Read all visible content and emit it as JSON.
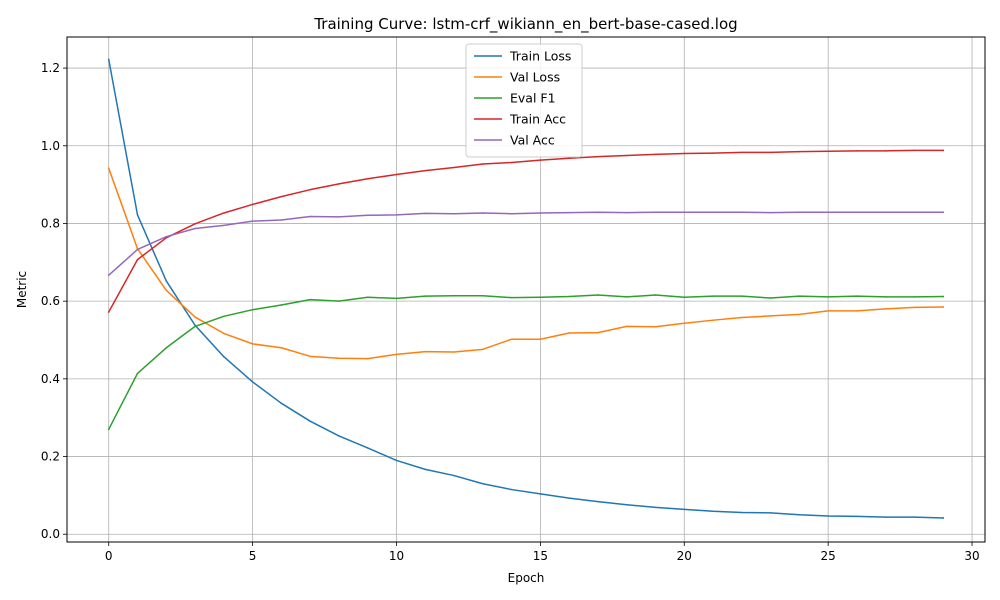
{
  "chart_data": {
    "type": "line",
    "title": "Training Curve: lstm-crf_wikiann_en_bert-base-cased.log",
    "xlabel": "Epoch",
    "ylabel": "Metric",
    "xlim": [
      -1.45,
      30.45
    ],
    "ylim": [
      -0.02,
      1.28
    ],
    "xticks": [
      0,
      5,
      10,
      15,
      20,
      25,
      30
    ],
    "yticks": [
      0.0,
      0.2,
      0.4,
      0.6,
      0.8,
      1.0,
      1.2
    ],
    "xtick_labels": [
      "0",
      "5",
      "10",
      "15",
      "20",
      "25",
      "30"
    ],
    "ytick_labels": [
      "0.0",
      "0.2",
      "0.4",
      "0.6",
      "0.8",
      "1.0",
      "1.2"
    ],
    "grid": true,
    "legend_position": "top-center",
    "x": [
      0,
      1,
      2,
      3,
      4,
      5,
      6,
      7,
      8,
      9,
      10,
      11,
      12,
      13,
      14,
      15,
      16,
      17,
      18,
      19,
      20,
      21,
      22,
      23,
      24,
      25,
      26,
      27,
      28,
      29
    ],
    "series": [
      {
        "name": "Train Loss",
        "color": "#1f77b4",
        "values": [
          1.222,
          0.822,
          0.652,
          0.538,
          0.457,
          0.392,
          0.337,
          0.291,
          0.253,
          0.222,
          0.19,
          0.167,
          0.151,
          0.13,
          0.115,
          0.104,
          0.093,
          0.084,
          0.076,
          0.069,
          0.064,
          0.059,
          0.056,
          0.055,
          0.05,
          0.047,
          0.046,
          0.044,
          0.044,
          0.042
        ]
      },
      {
        "name": "Val Loss",
        "color": "#ff7f0e",
        "values": [
          0.942,
          0.735,
          0.628,
          0.559,
          0.517,
          0.49,
          0.48,
          0.458,
          0.453,
          0.452,
          0.463,
          0.47,
          0.469,
          0.476,
          0.502,
          0.502,
          0.518,
          0.519,
          0.535,
          0.534,
          0.543,
          0.551,
          0.558,
          0.562,
          0.566,
          0.575,
          0.575,
          0.58,
          0.584,
          0.585
        ]
      },
      {
        "name": "Eval F1",
        "color": "#2ca02c",
        "values": [
          0.27,
          0.414,
          0.48,
          0.535,
          0.561,
          0.578,
          0.59,
          0.604,
          0.6,
          0.61,
          0.607,
          0.613,
          0.614,
          0.614,
          0.609,
          0.61,
          0.612,
          0.616,
          0.611,
          0.616,
          0.61,
          0.613,
          0.613,
          0.608,
          0.613,
          0.611,
          0.613,
          0.611,
          0.611,
          0.612
        ]
      },
      {
        "name": "Train Acc",
        "color": "#d62728",
        "values": [
          0.572,
          0.707,
          0.763,
          0.799,
          0.827,
          0.849,
          0.869,
          0.887,
          0.902,
          0.915,
          0.926,
          0.936,
          0.944,
          0.953,
          0.957,
          0.963,
          0.968,
          0.972,
          0.975,
          0.978,
          0.98,
          0.981,
          0.983,
          0.983,
          0.985,
          0.986,
          0.987,
          0.987,
          0.988,
          0.988
        ]
      },
      {
        "name": "Val Acc",
        "color": "#9467bd",
        "values": [
          0.667,
          0.733,
          0.766,
          0.787,
          0.795,
          0.806,
          0.809,
          0.818,
          0.817,
          0.821,
          0.822,
          0.826,
          0.825,
          0.827,
          0.825,
          0.827,
          0.828,
          0.829,
          0.828,
          0.829,
          0.829,
          0.829,
          0.829,
          0.828,
          0.829,
          0.829,
          0.829,
          0.829,
          0.829,
          0.829
        ]
      }
    ]
  }
}
